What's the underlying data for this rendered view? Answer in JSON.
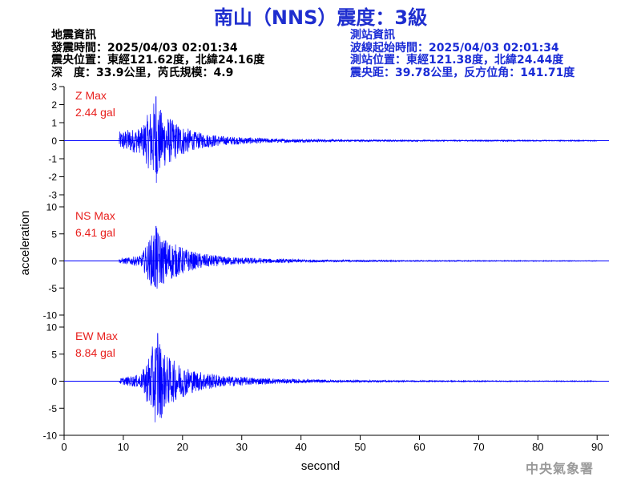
{
  "title": "南山（NNS）震度：3級",
  "quake_info": {
    "heading": "地震資訊",
    "origin_time": "發震時間：2025/04/03 02:01:34",
    "epicenter": "震央位置：東經121.62度，北緯24.16度",
    "depth_magnitude": "深　度：33.9公里，芮氏規模：4.9"
  },
  "station_info": {
    "heading": "測站資訊",
    "wave_start": "波線起始時間：2025/04/03 02:01:34",
    "station_location": "測站位置：東經121.38度，北緯24.44度",
    "distance_azimuth": "震央距：39.78公里，反方位角：141.71度"
  },
  "watermark": "中央氣象署",
  "chart_data": {
    "type": "line",
    "xlabel": "second",
    "ylabel": "acceleration",
    "xlim": [
      0,
      92
    ],
    "xticks": [
      0,
      10,
      20,
      30,
      40,
      50,
      60,
      70,
      80,
      90
    ],
    "line_color": "#0000ff",
    "max_label_color": "#e8201e",
    "panels": [
      {
        "component": "Z",
        "max_label": "Z Max",
        "max_value": "2.44 gal",
        "ylim": [
          -3,
          3
        ],
        "yticks": [
          -3,
          -2,
          -1,
          0,
          1,
          2,
          3
        ],
        "peak": 2.44,
        "onset_s": 9.3,
        "envelope_s": [
          [
            9.3,
            0.5
          ],
          [
            11,
            0.65
          ],
          [
            13,
            0.7
          ],
          [
            15.5,
            2.44
          ],
          [
            16.5,
            1.6
          ],
          [
            19,
            1.0
          ],
          [
            22,
            0.5
          ],
          [
            27,
            0.25
          ],
          [
            35,
            0.12
          ],
          [
            45,
            0.07
          ],
          [
            60,
            0.04
          ],
          [
            92,
            0.03
          ]
        ]
      },
      {
        "component": "NS",
        "max_label": "NS Max",
        "max_value": "6.41 gal",
        "ylim": [
          -10,
          10
        ],
        "yticks": [
          -10,
          -5,
          0,
          5,
          10
        ],
        "peak": 6.41,
        "onset_s": 9.3,
        "envelope_s": [
          [
            9.3,
            0.4
          ],
          [
            11,
            0.7
          ],
          [
            13,
            1.0
          ],
          [
            15.5,
            6.41
          ],
          [
            16.5,
            4.5
          ],
          [
            19,
            3.0
          ],
          [
            22,
            1.6
          ],
          [
            27,
            0.8
          ],
          [
            35,
            0.4
          ],
          [
            45,
            0.2
          ],
          [
            60,
            0.1
          ],
          [
            92,
            0.06
          ]
        ]
      },
      {
        "component": "EW",
        "max_label": "EW Max",
        "max_value": "8.84 gal",
        "ylim": [
          -10,
          10
        ],
        "yticks": [
          -10,
          -5,
          0,
          5,
          10
        ],
        "peak": 8.84,
        "onset_s": 9.3,
        "envelope_s": [
          [
            9.3,
            0.5
          ],
          [
            11,
            0.9
          ],
          [
            13,
            1.3
          ],
          [
            15.8,
            8.84
          ],
          [
            17,
            5.0
          ],
          [
            19,
            3.5
          ],
          [
            22,
            2.0
          ],
          [
            27,
            1.0
          ],
          [
            35,
            0.5
          ],
          [
            45,
            0.25
          ],
          [
            60,
            0.12
          ],
          [
            92,
            0.07
          ]
        ]
      }
    ]
  }
}
